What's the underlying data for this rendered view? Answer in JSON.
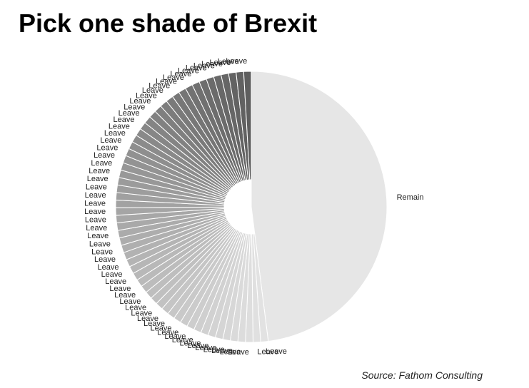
{
  "title": "Pick one shade of Brexit",
  "source": "Source: Fathom Consulting",
  "chart_data": {
    "type": "pie",
    "title": "Pick one shade of Brexit",
    "slice_labels": [
      "Remain",
      "Leave"
    ],
    "remain": {
      "label": "Remain",
      "share": 0.48,
      "color": "#e6e6e6"
    },
    "leave": {
      "label": "Leave",
      "share": 0.52,
      "slice_count": 58,
      "color_start": "#e2e2e2",
      "color_mid": "#a6a6a6",
      "color_end": "#5e5e5e"
    },
    "edge_color": "#ffffff",
    "legend": "none"
  }
}
